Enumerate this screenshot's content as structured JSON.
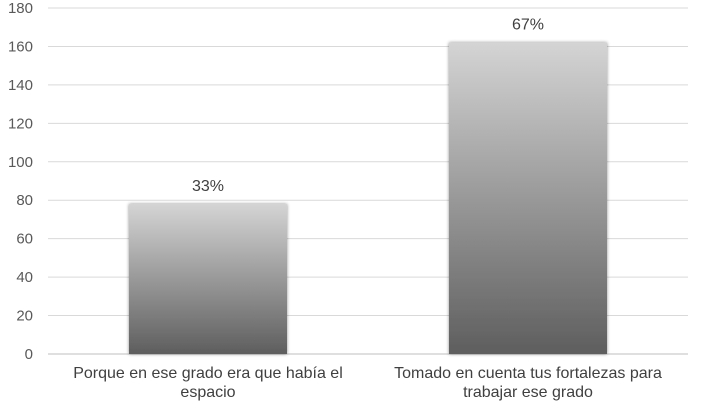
{
  "chart_data": {
    "type": "bar",
    "categories": [
      "Porque en ese grado era que había el espacio",
      "Tomado en cuenta tus fortalezas para trabajar ese grado"
    ],
    "values": [
      78,
      162
    ],
    "data_labels": [
      "33%",
      "67%"
    ],
    "yticks": [
      "0",
      "20",
      "40",
      "60",
      "80",
      "100",
      "120",
      "140",
      "160",
      "180"
    ],
    "ylim": [
      0,
      180
    ],
    "grid": true,
    "legend": "none",
    "bar_color_top": "#d4d4d4",
    "bar_color_bottom": "#5e5e5e"
  }
}
